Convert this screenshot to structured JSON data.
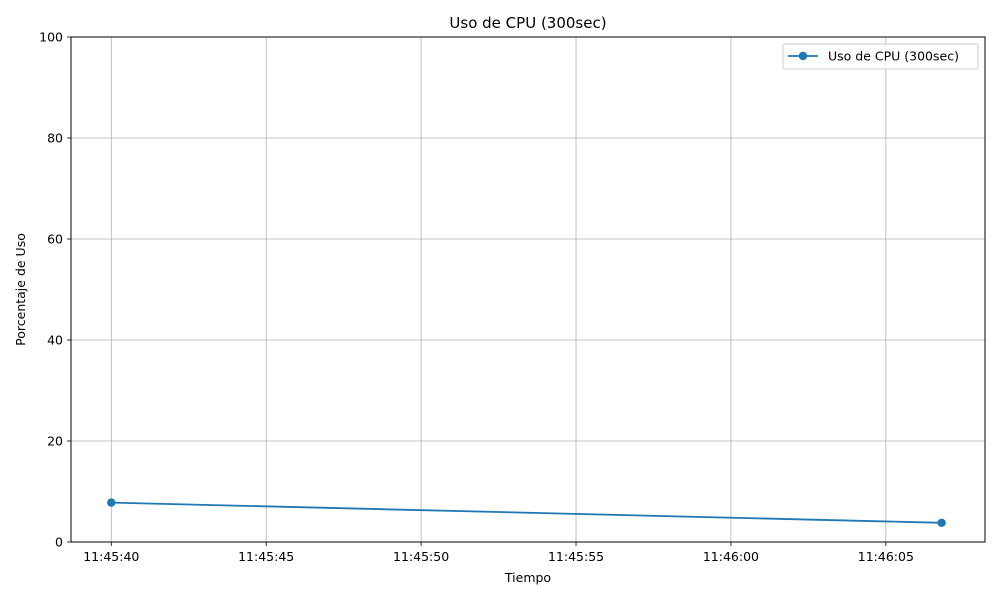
{
  "chart_data": {
    "type": "line",
    "title": "Uso de CPU (300sec)",
    "xlabel": "Tiempo",
    "ylabel": "Porcentaje de Uso",
    "ylim": [
      0,
      100
    ],
    "xlim": [
      "11:45:38.7",
      "11:46:08.2"
    ],
    "y_ticks": [
      0,
      20,
      40,
      60,
      80,
      100
    ],
    "x_ticks": [
      "11:45:40",
      "11:45:45",
      "11:45:50",
      "11:45:55",
      "11:46:00",
      "11:46:05"
    ],
    "grid": true,
    "legend_position": "upper right",
    "series": [
      {
        "name": "Uso de CPU (300sec)",
        "color": "#1f77b4",
        "marker": "circle",
        "x": [
          "11:45:40",
          "11:46:06.8"
        ],
        "y": [
          7.8,
          3.8
        ]
      }
    ]
  }
}
